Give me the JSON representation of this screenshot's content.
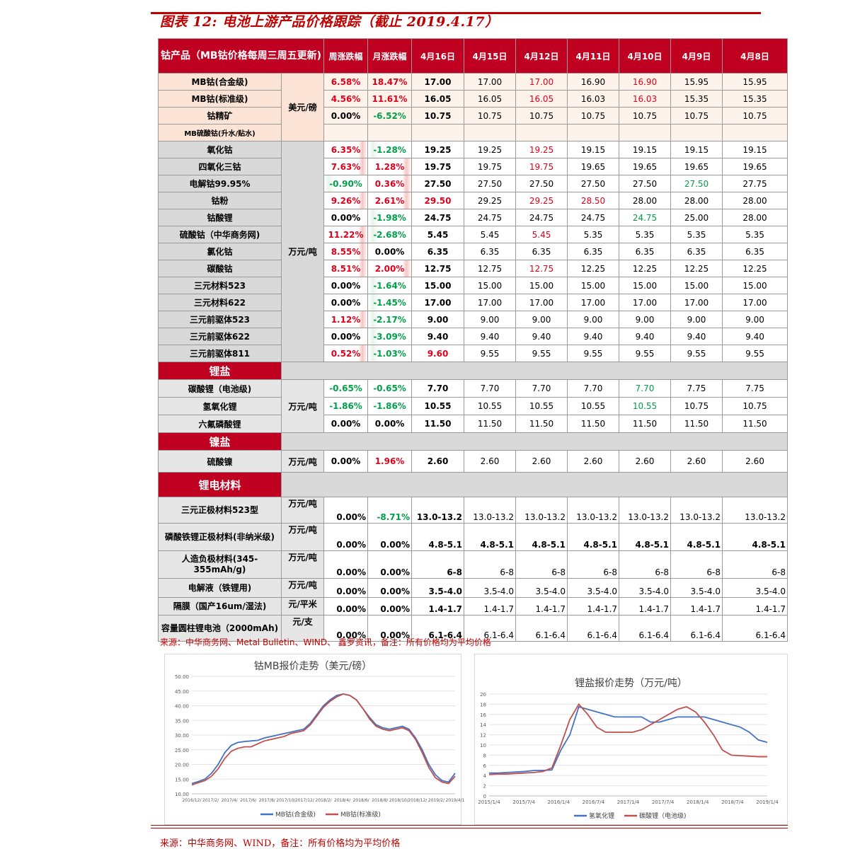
{
  "title": "图表 12:  电池上游产品价格跟踪（截止 2019.4.17）",
  "header": {
    "first": "钴产品（MB钴价格每周三周五更新)",
    "week_change": "周涨跌幅",
    "month_change": "月涨跌幅",
    "dates": [
      "4月16日",
      "4月15日",
      "4月12日",
      "4月11日",
      "4月10日",
      "4月9日",
      "4月8日"
    ]
  },
  "groups": [
    {
      "style": "g-beige",
      "unit": "美元/磅",
      "rows": [
        {
          "name": "MB钴(合金级)",
          "w": "6.58%",
          "m": "18.47%",
          "wc": "pos",
          "mc": "pos",
          "v": [
            "17.00",
            "17.00",
            "17.00",
            "16.90",
            "16.90",
            "15.95",
            "15.95"
          ],
          "vc": [
            "",
            "",
            "red",
            "",
            "red",
            "",
            ""
          ]
        },
        {
          "name": "MB钴(标准级)",
          "w": "4.56%",
          "m": "11.61%",
          "wc": "pos",
          "mc": "pos",
          "v": [
            "16.05",
            "16.05",
            "16.05",
            "16.03",
            "16.03",
            "15.35",
            "15.35"
          ],
          "vc": [
            "",
            "",
            "red",
            "",
            "red",
            "",
            ""
          ]
        },
        {
          "name": "钴精矿",
          "w": "0.00%",
          "m": "-6.52%",
          "wc": "",
          "mc": "neg",
          "v": [
            "10.75",
            "10.75",
            "10.75",
            "10.75",
            "10.75",
            "10.75",
            "10.75"
          ],
          "vc": [
            "",
            "",
            "",
            "",
            "",
            "",
            ""
          ]
        },
        {
          "name": "MB硫酸钴(升水/贴水)",
          "w": "",
          "m": "",
          "wc": "",
          "mc": "",
          "v": [
            "",
            "",
            "",
            "",
            "",
            "",
            ""
          ],
          "vc": [
            "",
            "",
            "",
            "",
            "",
            "",
            ""
          ],
          "small": true
        }
      ]
    },
    {
      "style": "g-grey",
      "unit": "万元/吨",
      "rows": [
        {
          "name": "氧化钴",
          "w": "6.35%",
          "m": "-1.28%",
          "wc": "pos",
          "mc": "neg",
          "v": [
            "19.25",
            "19.25",
            "19.25",
            "19.15",
            "19.15",
            "19.15",
            "19.15"
          ],
          "vc": [
            "",
            "",
            "red",
            "",
            "",
            "",
            ""
          ]
        },
        {
          "name": "四氧化三钴",
          "w": "7.63%",
          "m": "1.28%",
          "wc": "pos",
          "mc": "pos",
          "v": [
            "19.75",
            "19.75",
            "19.75",
            "19.65",
            "19.65",
            "19.65",
            "19.65"
          ],
          "vc": [
            "",
            "",
            "red",
            "",
            "",
            "",
            ""
          ]
        },
        {
          "name": "电解钴99.95%",
          "w": "-0.90%",
          "m": "0.36%",
          "wc": "neg",
          "mc": "pos",
          "v": [
            "27.50",
            "27.50",
            "27.50",
            "27.50",
            "27.50",
            "27.50",
            "27.75"
          ],
          "vc": [
            "",
            "",
            "",
            "",
            "",
            "green",
            ""
          ]
        },
        {
          "name": "钴粉",
          "w": "9.26%",
          "m": "2.61%",
          "wc": "pos",
          "mc": "pos",
          "v": [
            "29.50",
            "29.25",
            "29.25",
            "28.50",
            "28.00",
            "28.00",
            "28.00"
          ],
          "vc": [
            "red",
            "",
            "red",
            "red",
            "",
            "",
            ""
          ]
        },
        {
          "name": "钴酸锂",
          "w": "0.00%",
          "m": "-1.98%",
          "wc": "",
          "mc": "neg",
          "v": [
            "24.75",
            "24.75",
            "24.75",
            "24.75",
            "24.75",
            "25.00",
            "28.00"
          ],
          "vc": [
            "",
            "",
            "",
            "",
            "green",
            "",
            ""
          ]
        },
        {
          "name": "硫酸钴（中华商务网)",
          "w": "11.22%",
          "m": "-2.68%",
          "wc": "pos",
          "mc": "neg",
          "v": [
            "5.45",
            "5.45",
            "5.45",
            "5.35",
            "5.35",
            "5.35",
            "5.35"
          ],
          "vc": [
            "",
            "",
            "red",
            "",
            "",
            "",
            ""
          ]
        },
        {
          "name": "氯化钴",
          "w": "8.55%",
          "m": "0.00%",
          "wc": "pos",
          "mc": "",
          "v": [
            "6.35",
            "6.35",
            "6.35",
            "6.35",
            "6.35",
            "6.35",
            "6.35"
          ],
          "vc": [
            "",
            "",
            "",
            "",
            "",
            "",
            ""
          ]
        },
        {
          "name": "碳酸钴",
          "w": "8.51%",
          "m": "2.00%",
          "wc": "pos",
          "mc": "pos",
          "v": [
            "12.75",
            "12.75",
            "12.75",
            "12.25",
            "12.25",
            "12.25",
            "12.25"
          ],
          "vc": [
            "",
            "",
            "red",
            "",
            "",
            "",
            ""
          ]
        },
        {
          "name": "三元材料523",
          "w": "0.00%",
          "m": "-1.64%",
          "wc": "",
          "mc": "neg",
          "v": [
            "15.00",
            "15.00",
            "15.00",
            "15.00",
            "15.00",
            "15.00",
            "15.00"
          ],
          "vc": [
            "",
            "",
            "",
            "",
            "",
            "",
            ""
          ]
        },
        {
          "name": "三元材料622",
          "w": "0.00%",
          "m": "-1.45%",
          "wc": "",
          "mc": "neg",
          "v": [
            "17.00",
            "17.00",
            "17.00",
            "17.00",
            "17.00",
            "17.00",
            "17.00"
          ],
          "vc": [
            "",
            "",
            "",
            "",
            "",
            "",
            ""
          ]
        },
        {
          "name": "三元前驱体523",
          "w": "1.12%",
          "m": "-2.17%",
          "wc": "pos",
          "mc": "neg",
          "v": [
            "9.00",
            "9.00",
            "9.00",
            "9.00",
            "9.00",
            "9.00",
            "9.00"
          ],
          "vc": [
            "",
            "",
            "",
            "",
            "",
            "",
            ""
          ]
        },
        {
          "name": "三元前驱体622",
          "w": "0.00%",
          "m": "-3.09%",
          "wc": "",
          "mc": "neg",
          "v": [
            "9.40",
            "9.40",
            "9.40",
            "9.40",
            "9.40",
            "9.40",
            "9.40"
          ],
          "vc": [
            "",
            "",
            "",
            "",
            "",
            "",
            ""
          ]
        },
        {
          "name": "三元前驱体811",
          "w": "0.52%",
          "m": "-1.03%",
          "wc": "pos",
          "mc": "neg",
          "v": [
            "9.60",
            "9.55",
            "9.55",
            "9.55",
            "9.55",
            "9.55",
            "9.55"
          ],
          "vc": [
            "red",
            "",
            "",
            "",
            "",
            "",
            ""
          ]
        }
      ]
    }
  ],
  "lithium": {
    "title": "锂盐",
    "unit": "万元/吨",
    "rows": [
      {
        "name": "碳酸锂（电池级)",
        "w": "-0.65%",
        "m": "-0.65%",
        "wc": "neg",
        "mc": "neg",
        "v": [
          "7.70",
          "7.70",
          "7.70",
          "7.70",
          "7.70",
          "7.75",
          "7.75"
        ],
        "vc": [
          "",
          "",
          "",
          "",
          "green",
          "",
          ""
        ]
      },
      {
        "name": "氢氧化锂",
        "w": "-1.86%",
        "m": "-1.86%",
        "wc": "neg",
        "mc": "neg",
        "v": [
          "10.55",
          "10.55",
          "10.55",
          "10.55",
          "10.55",
          "10.75",
          "10.75"
        ],
        "vc": [
          "",
          "",
          "",
          "",
          "green",
          "",
          ""
        ]
      },
      {
        "name": "六氟磷酸锂",
        "w": "0.00%",
        "m": "0.00%",
        "wc": "",
        "mc": "",
        "v": [
          "11.50",
          "11.50",
          "11.50",
          "11.50",
          "11.50",
          "11.50",
          "11.50"
        ],
        "vc": [
          "",
          "",
          "",
          "",
          "",
          "",
          ""
        ]
      }
    ]
  },
  "nickel": {
    "title": "镍盐",
    "rows": [
      {
        "name": "硫酸镍",
        "unit": "万元/吨",
        "w": "0.00%",
        "m": "1.96%",
        "wc": "",
        "mc": "pos",
        "v": [
          "2.60",
          "2.60",
          "2.60",
          "2.60",
          "2.60",
          "2.60",
          "2.60"
        ]
      }
    ]
  },
  "materials": {
    "title": "锂电材料",
    "rows": [
      {
        "name": "三元正极材料523型",
        "unit": "万元/吨",
        "w": "0.00%",
        "m": "-8.71%",
        "wc": "",
        "mc": "neg",
        "v": [
          "13.0-13.2",
          "13.0-13.2",
          "13.0-13.2",
          "13.0-13.2",
          "13.0-13.2",
          "13.0-13.2",
          "13.0-13.2"
        ],
        "bold": false,
        "h": 36
      },
      {
        "name": "磷酸铁锂正极材料(非纳米级)",
        "unit": "万元/吨",
        "w": "0.00%",
        "m": "0.00%",
        "wc": "",
        "mc": "",
        "v": [
          "4.8-5.1",
          "4.8-5.1",
          "4.8-5.1",
          "4.8-5.1",
          "4.8-5.1",
          "4.8-5.1",
          "4.8-5.1"
        ],
        "bold": true,
        "h": 38
      },
      {
        "name": "人造负极材料(345-355mAh/g)",
        "unit": "万元/吨",
        "w": "0.00%",
        "m": "0.00%",
        "wc": "",
        "mc": "",
        "v": [
          "6-8",
          "6-8",
          "6-8",
          "6-8",
          "6-8",
          "6-8",
          "6-8"
        ],
        "bold": false,
        "h": 38
      },
      {
        "name": "电解液（铁锂用)",
        "unit": "万元/吨",
        "w": "0.00%",
        "m": "0.00%",
        "wc": "",
        "mc": "",
        "v": [
          "3.5-4.0",
          "3.5-4.0",
          "3.5-4.0",
          "3.5-4.0",
          "3.5-4.0",
          "3.5-4.0",
          "3.5-4.0"
        ],
        "bold": false,
        "h": 26
      },
      {
        "name": "隔膜（国产16um/湿法)",
        "unit": "元/平米",
        "w": "0.00%",
        "m": "0.00%",
        "wc": "",
        "mc": "",
        "v": [
          "1.4-1.7",
          "1.4-1.7",
          "1.4-1.7",
          "1.4-1.7",
          "1.4-1.7",
          "1.4-1.7",
          "1.4-1.7"
        ],
        "bold": false,
        "h": 20
      },
      {
        "name": "容量圆柱锂电池（2000mAh)",
        "unit": "元/支",
        "w": "0.00%",
        "m": "0.00%",
        "wc": "",
        "mc": "",
        "v": [
          "6.1-6.4",
          "6.1-6.4",
          "6.1-6.4",
          "6.1-6.4",
          "6.1-6.4",
          "6.1-6.4",
          "6.1-6.4"
        ],
        "bold": false,
        "h": 36
      }
    ]
  },
  "source1": "来源：中华商务网、Metal Bulletin、WIND、 鑫罗资讯，备注：所有价格均为平均价格",
  "chart_data": [
    {
      "type": "line",
      "title": "钴MB报价走势（美元/磅）",
      "yticks": [
        "50.00",
        "45.00",
        "40.00",
        "35.00",
        "30.00",
        "25.00",
        "20.00",
        "15.00",
        "10.00"
      ],
      "ylim": [
        10,
        50
      ],
      "xticks": [
        "2016/12/",
        "2017/2/",
        "2017/4/",
        "2017/6/",
        "2017/8/",
        "2017/10/",
        "2017/12/",
        "2018/2/",
        "2018/4/",
        "2018/6/",
        "2018/8/",
        "2018/10/",
        "2018/12/",
        "2019/2/",
        "2019/4/1"
      ],
      "series": [
        {
          "name": "MB钴(合金级)",
          "color": "#4472c4",
          "values": [
            13.5,
            14.2,
            15.0,
            17.0,
            20.0,
            24.0,
            26.5,
            27.5,
            27.8,
            28.0,
            28.2,
            29.0,
            29.5,
            30.0,
            30.5,
            31.0,
            31.5,
            32.0,
            34.0,
            37.0,
            40.0,
            42.0,
            43.5,
            44.0,
            43.5,
            42.0,
            39.0,
            36.0,
            33.5,
            32.5,
            32.0,
            32.5,
            33.0,
            32.0,
            29.0,
            25.0,
            20.0,
            16.5,
            14.5,
            14.0,
            17.0
          ]
        },
        {
          "name": "MB钴(标准级)",
          "color": "#c0504d",
          "values": [
            13.0,
            13.8,
            14.5,
            16.0,
            18.5,
            22.0,
            24.5,
            25.5,
            26.0,
            26.0,
            27.0,
            28.0,
            28.5,
            29.0,
            29.5,
            30.5,
            31.0,
            31.5,
            33.5,
            36.5,
            39.5,
            41.5,
            43.0,
            44.0,
            43.5,
            42.0,
            39.0,
            35.5,
            33.0,
            32.0,
            31.5,
            32.0,
            32.5,
            31.5,
            28.5,
            24.0,
            19.0,
            15.5,
            14.0,
            13.5,
            16.0
          ]
        }
      ]
    },
    {
      "type": "line",
      "title": "锂盐报价走势（万元/吨）",
      "yticks": [
        "20",
        "18",
        "16",
        "14",
        "12",
        "10",
        "8",
        "6",
        "4",
        "2",
        "0"
      ],
      "ylim": [
        0,
        20
      ],
      "xticks": [
        "2015/1/4",
        "2015/7/4",
        "2016/1/4",
        "2016/7/4",
        "2017/1/4",
        "2017/7/4",
        "2018/1/4",
        "2018/7/4",
        "2019/1/4"
      ],
      "series": [
        {
          "name": "氢氧化锂",
          "color": "#4472c4",
          "values": [
            4.5,
            4.5,
            4.6,
            4.7,
            4.8,
            5.0,
            5.0,
            5.1,
            9.0,
            12.0,
            17.5,
            17.0,
            16.5,
            16.0,
            15.5,
            15.5,
            15.5,
            15.5,
            14.5,
            14.5,
            15.0,
            15.5,
            15.5,
            15.5,
            15.5,
            15.0,
            14.5,
            14.0,
            13.5,
            12.5,
            11.0,
            10.5
          ]
        },
        {
          "name": "碳酸锂（电池级)",
          "color": "#c0504d",
          "values": [
            4.2,
            4.3,
            4.3,
            4.4,
            4.5,
            4.6,
            4.8,
            5.5,
            10.0,
            15.0,
            18.0,
            16.0,
            13.5,
            12.5,
            12.5,
            12.5,
            12.5,
            13.0,
            14.0,
            15.0,
            16.0,
            17.0,
            17.5,
            16.5,
            14.5,
            12.0,
            9.0,
            8.0,
            7.9,
            7.8,
            7.7,
            7.7
          ]
        }
      ]
    }
  ],
  "source2": "来源：中华商务网、WIND，备注：所有价格均为平均价格"
}
